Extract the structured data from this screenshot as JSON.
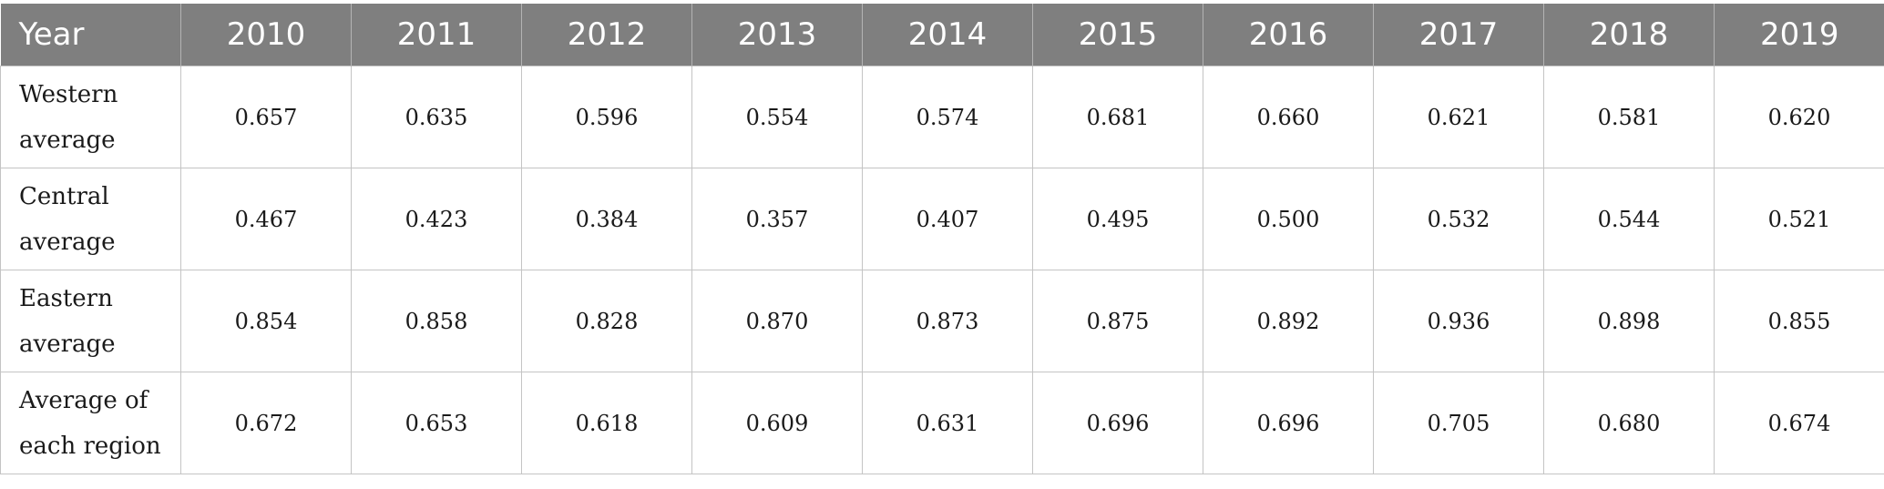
{
  "table": {
    "header": [
      "Year",
      "2010",
      "2011",
      "2012",
      "2013",
      "2014",
      "2015",
      "2016",
      "2017",
      "2018",
      "2019"
    ],
    "rows": [
      {
        "label": "Western average",
        "values": [
          "0.657",
          "0.635",
          "0.596",
          "0.554",
          "0.574",
          "0.681",
          "0.660",
          "0.621",
          "0.581",
          "0.620"
        ]
      },
      {
        "label": "Central average",
        "values": [
          "0.467",
          "0.423",
          "0.384",
          "0.357",
          "0.407",
          "0.495",
          "0.500",
          "0.532",
          "0.544",
          "0.521"
        ]
      },
      {
        "label": "Eastern average",
        "values": [
          "0.854",
          "0.858",
          "0.828",
          "0.870",
          "0.873",
          "0.875",
          "0.892",
          "0.936",
          "0.898",
          "0.855"
        ]
      },
      {
        "label": "Average of each region",
        "values": [
          "0.672",
          "0.653",
          "0.618",
          "0.609",
          "0.631",
          "0.696",
          "0.696",
          "0.705",
          "0.680",
          "0.674"
        ]
      }
    ]
  },
  "colors": {
    "header_bg": "#7f7f7f",
    "header_text": "#ffffff",
    "grid": "#c4c4c4"
  }
}
